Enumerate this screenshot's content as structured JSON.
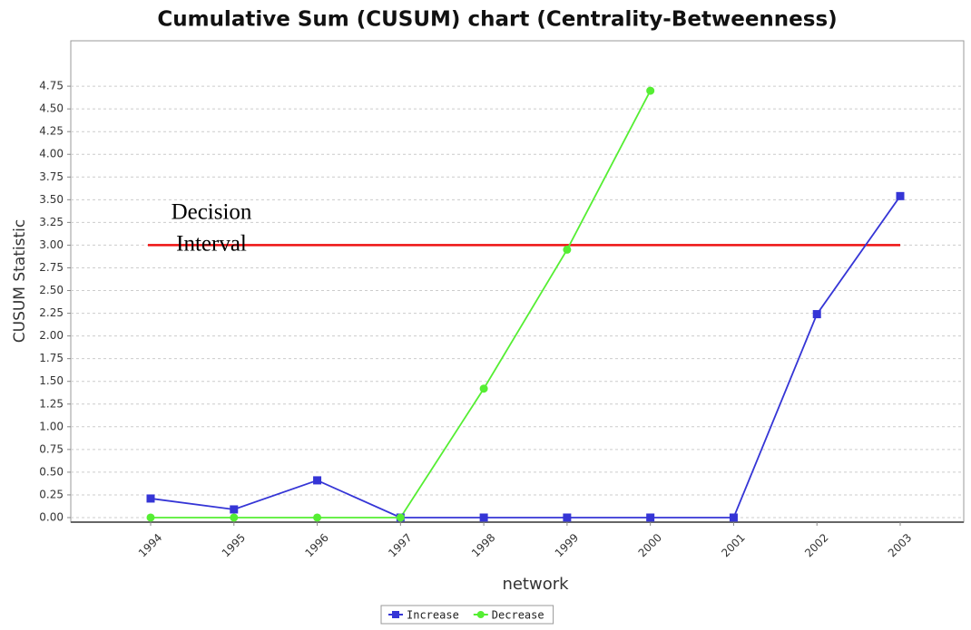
{
  "chart_data": {
    "type": "line",
    "title": "Cumulative Sum (CUSUM) chart (Centrality-Betweenness)",
    "x_label": "network",
    "y_label": "CUSUM Statistic",
    "categories": [
      "1994",
      "1995",
      "1996",
      "1997",
      "1998",
      "1999",
      "2000",
      "2001",
      "2002",
      "2003"
    ],
    "series": [
      {
        "name": "Increase",
        "color": "#3535d6",
        "marker": "square",
        "values": [
          0.21,
          0.09,
          0.41,
          0,
          0,
          0,
          0,
          0,
          2.24,
          3.54
        ]
      },
      {
        "name": "Decrease",
        "color": "#55ee33",
        "marker": "circle",
        "values": [
          0,
          0,
          0,
          0,
          1.42,
          2.95,
          4.7,
          null,
          null,
          null
        ]
      }
    ],
    "ylim": [
      -0.05,
      5.25
    ],
    "yticks": [
      {
        "value": 0,
        "label": "0.00"
      },
      0.25,
      {
        "value": 0.5,
        "label": "0.50"
      },
      0.75,
      {
        "value": 1,
        "label": "1.00"
      },
      1.25,
      {
        "value": 1.5,
        "label": "1.50"
      },
      1.75,
      {
        "value": 2,
        "label": "2.00"
      },
      2.25,
      {
        "value": 2.5,
        "label": "2.50"
      },
      2.75,
      {
        "value": 3,
        "label": "3.00"
      },
      3.25,
      {
        "value": 3.5,
        "label": "3.50"
      },
      3.75,
      {
        "value": 4,
        "label": "4.00"
      },
      4.25,
      {
        "value": 4.5,
        "label": "4.50"
      },
      4.75
    ],
    "grid": true,
    "legend": "bottom",
    "threshold": {
      "value": 3,
      "color": "#ee1111",
      "label_lines": [
        "Decision",
        "Interval"
      ]
    }
  }
}
